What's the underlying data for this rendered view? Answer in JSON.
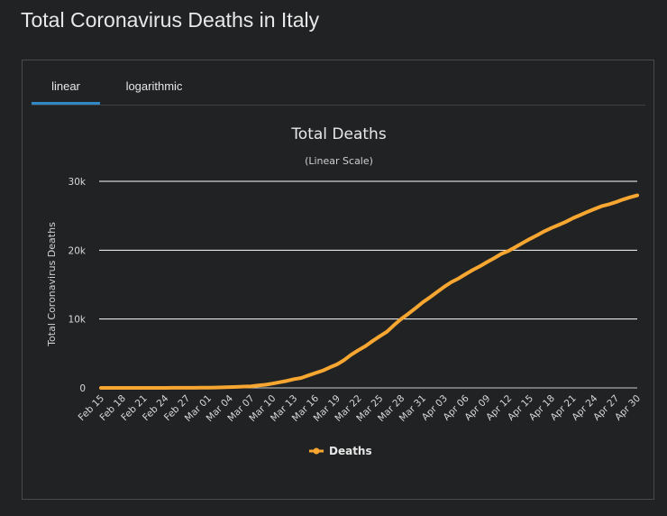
{
  "page": {
    "title": "Total Coronavirus Deaths in Italy"
  },
  "tabs": [
    {
      "label": "linear",
      "active": true
    },
    {
      "label": "logarithmic",
      "active": false
    }
  ],
  "colors": {
    "series": "#f7a731",
    "grid": "#ffffff",
    "tab_active": "#2f88c4"
  },
  "chart_data": {
    "type": "line",
    "title": "Total Deaths",
    "subtitle": "(Linear Scale)",
    "ylabel": "Total Coronavirus Deaths",
    "xlabel": "",
    "ylim": [
      0,
      30000
    ],
    "yticks": [
      0,
      10000,
      20000,
      30000
    ],
    "ytick_labels": [
      "0",
      "10k",
      "20k",
      "30k"
    ],
    "grid": true,
    "legend_position": "bottom-center",
    "x": [
      "Feb 15",
      "Feb 16",
      "Feb 17",
      "Feb 18",
      "Feb 19",
      "Feb 20",
      "Feb 21",
      "Feb 22",
      "Feb 23",
      "Feb 24",
      "Feb 25",
      "Feb 26",
      "Feb 27",
      "Feb 28",
      "Feb 29",
      "Mar 01",
      "Mar 02",
      "Mar 03",
      "Mar 04",
      "Mar 05",
      "Mar 06",
      "Mar 07",
      "Mar 08",
      "Mar 09",
      "Mar 10",
      "Mar 11",
      "Mar 12",
      "Mar 13",
      "Mar 14",
      "Mar 15",
      "Mar 16",
      "Mar 17",
      "Mar 18",
      "Mar 19",
      "Mar 20",
      "Mar 21",
      "Mar 22",
      "Mar 23",
      "Mar 24",
      "Mar 25",
      "Mar 26",
      "Mar 27",
      "Mar 28",
      "Mar 29",
      "Mar 30",
      "Mar 31",
      "Apr 01",
      "Apr 02",
      "Apr 03",
      "Apr 04",
      "Apr 05",
      "Apr 06",
      "Apr 07",
      "Apr 08",
      "Apr 09",
      "Apr 10",
      "Apr 11",
      "Apr 12",
      "Apr 13",
      "Apr 14",
      "Apr 15",
      "Apr 16",
      "Apr 17",
      "Apr 18",
      "Apr 19",
      "Apr 20",
      "Apr 21",
      "Apr 22",
      "Apr 23",
      "Apr 24",
      "Apr 25",
      "Apr 26",
      "Apr 27",
      "Apr 28",
      "Apr 29",
      "Apr 30"
    ],
    "xtick_labels": [
      "Feb 15",
      "Feb 18",
      "Feb 21",
      "Feb 24",
      "Feb 27",
      "Mar 01",
      "Mar 04",
      "Mar 07",
      "Mar 10",
      "Mar 13",
      "Mar 16",
      "Mar 19",
      "Mar 22",
      "Mar 25",
      "Mar 28",
      "Mar 31",
      "Apr 03",
      "Apr 06",
      "Apr 09",
      "Apr 12",
      "Apr 15",
      "Apr 18",
      "Apr 21",
      "Apr 24",
      "Apr 27",
      "Apr 30"
    ],
    "series": [
      {
        "name": "Deaths",
        "values": [
          0,
          0,
          0,
          0,
          0,
          0,
          1,
          2,
          3,
          7,
          10,
          12,
          17,
          21,
          29,
          34,
          52,
          79,
          107,
          148,
          197,
          233,
          366,
          463,
          631,
          827,
          1016,
          1266,
          1441,
          1809,
          2158,
          2503,
          2978,
          3405,
          4032,
          4825,
          5476,
          6077,
          6820,
          7503,
          8165,
          9134,
          10023,
          10779,
          11591,
          12428,
          13155,
          13915,
          14681,
          15362,
          15887,
          16523,
          17127,
          17669,
          18279,
          18849,
          19468,
          19899,
          20465,
          21067,
          21645,
          22170,
          22745,
          23227,
          23660,
          24114,
          24648,
          25085,
          25549,
          25969,
          26384,
          26644,
          26977,
          27359,
          27682,
          27967
        ]
      }
    ]
  }
}
